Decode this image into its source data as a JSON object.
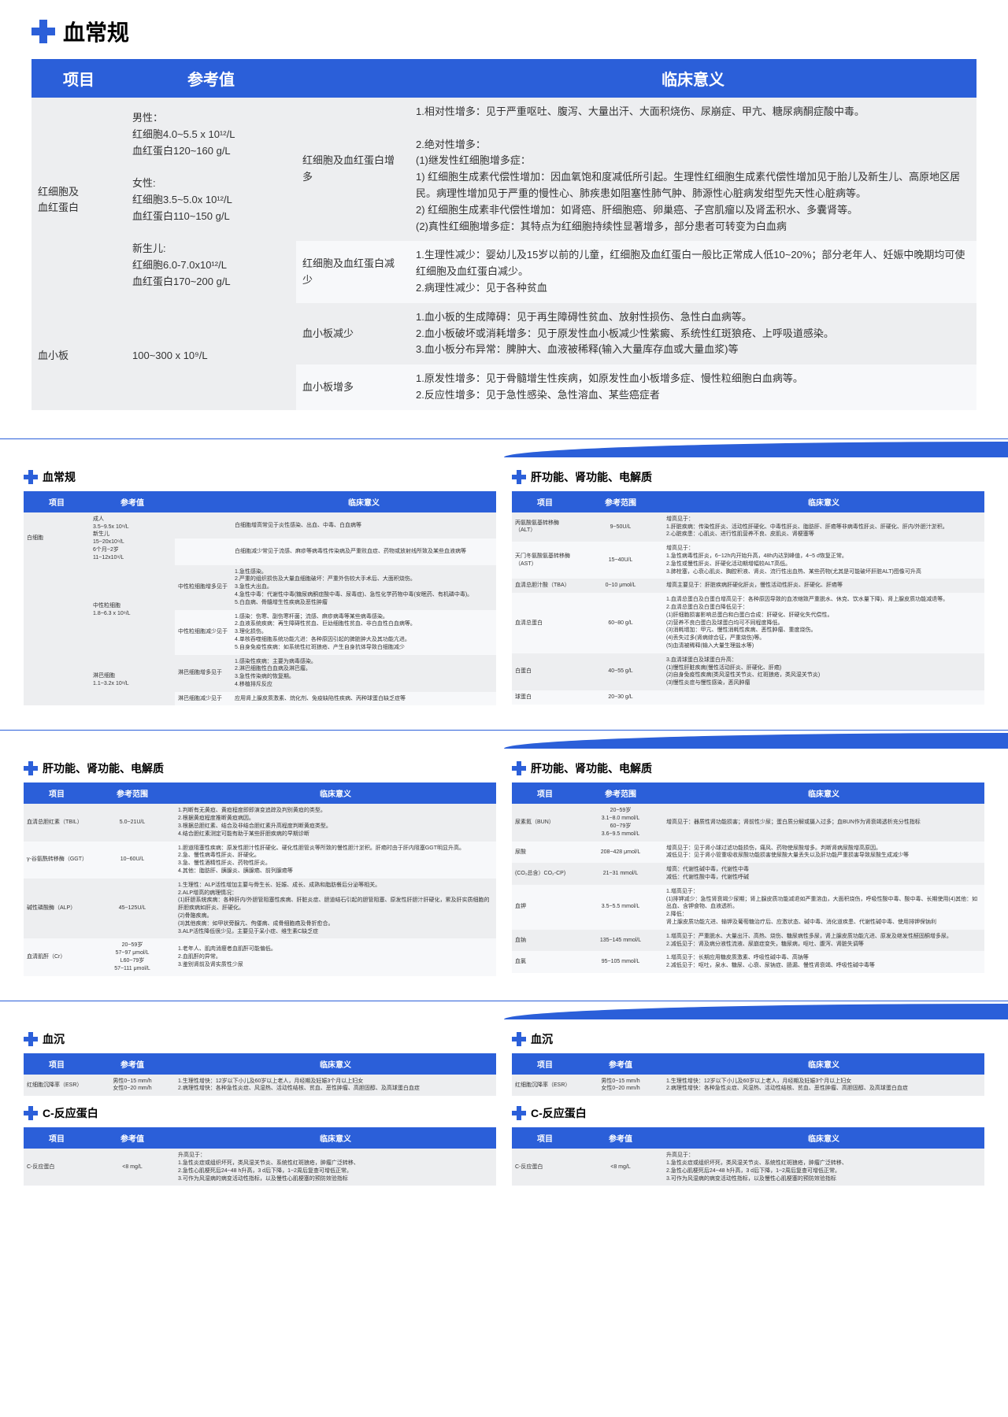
{
  "mainTitle": "血常规",
  "mainTable": {
    "headers": [
      "项目",
      "参考值",
      "",
      "临床意义"
    ],
    "rows": [
      {
        "item": "红细胞及\n血红蛋白",
        "ref": "男性：\n红细胞4.0~5.5 x 10¹²/L\n血红蛋白120~160 g/L\n\n女性:\n红细胞3.5~5.0x 10¹²/L\n血红蛋白110~150 g/L\n\n新生儿:\n红细胞6.0-7.0x10¹²/L\n血红蛋白170~200 g/L",
        "subs": [
          {
            "label": "红细胞及血红蛋白增多",
            "meaning": "1.相对性增多：见于严重呕吐、腹泻、大量出汗、大面积烧伤、尿崩症、甲亢、糖尿病酮症酸中毒。\n\n2.绝对性增多：\n(1)继发性红细胞增多症：\n1) 红细胞生成素代偿性增加：因血氧饱和度减低所引起。生理性红细胞生成素代偿性增加见于胎儿及新生儿、高原地区居民。病理性增加见于严重的慢性心、肺疾患如阻塞性肺气肿、肺源性心脏病发绀型先天性心脏病等。\n2) 红细胞生成素非代偿性增加：如肾癌、肝细胞癌、卵巢癌、子宫肌瘤以及肾盂积水、多囊肾等。\n(2)真性红细胞增多症：其特点为红细胞持续性显著增多，部分患者可转变为白血病"
          },
          {
            "label": "红细胞及血红蛋白减少",
            "meaning": "1.生理性减少：婴幼儿及15岁以前的儿童，红细胞及血红蛋白一般比正常成人低10~20%；部分老年人、妊娠中晚期均可使红细胞及血红蛋白减少。\n2.病理性减少：见于各种贫血"
          }
        ]
      },
      {
        "item": "血小板",
        "ref": "100~300 x 10⁹/L",
        "subs": [
          {
            "label": "血小板减少",
            "meaning": "1.血小板的生成障碍：见于再生障碍性贫血、放射性损伤、急性白血病等。\n2.血小板破坏或消耗增多：见于原发性血小板减少性紫癜、系统性红斑狼疮、上呼吸道感染。\n3.血小板分布异常：脾肿大、血液被稀释(输入大量库存血或大量血浆)等"
          },
          {
            "label": "血小板增多",
            "meaning": "1.原发性增多：见于骨髓增生性疾病，如原发性血小板增多症、慢性粒细胞白血病等。\n2.反应性增多：见于急性感染、急性溶血、某些癌症者"
          }
        ]
      }
    ]
  },
  "panels": {
    "bloodRoutine": {
      "title": "血常规",
      "headers": [
        "项目",
        "参考值",
        "",
        "临床意义"
      ],
      "rows": [
        {
          "item": "白细胞",
          "ref": "成人\n3.5~9.5x 10⁹/L\n新生儿\n15~20x10⁹/L\n6个月~2岁\n11~12x10⁹/L",
          "subs": [
            {
              "label": "",
              "meaning": "白细胞增高常见于炎性感染、出血、中毒、白血病等"
            },
            {
              "label": "",
              "meaning": "白细胞减少常见于流感、麻疹等病毒性传染病及严重败血症、药物或放射线所致及某些血液病等"
            }
          ]
        },
        {
          "item": "",
          "ref": "中性粒细胞\n1.8~6.3 x 10⁹/L",
          "subs": [
            {
              "label": "中性粒细胞增多见于",
              "meaning": "1.急性感染。\n2.严重的组织损伤及大量血细胞破坏：严重外伤较大手术后、大面积烧伤。\n3.急性大出血。\n4.急性中毒：代谢性中毒(糖尿病酮症酸中毒、尿毒症)、急性化学药物中毒(安眠药、有机磷中毒)。\n5.白血病、骨髓增生性疾病及恶性肿瘤"
            },
            {
              "label": "中性粒细胞减少见于",
              "meaning": "1.感染：伤寒、副伤寒杆菌；流感、麻疹病毒等某些病毒感染。\n2.血液系统疾病：再生障碍性贫血、巨幼细胞性贫血、非白血性白血病等。\n3.理化损伤。\n4.单核吞噬细胞系统功能亢进：各种原因引起的脾脏肿大及其功能亢进。\n5.自身免疫性疾病：如系统性红斑狼疮、产生自身抗体导致白细胞减少"
            }
          ]
        },
        {
          "item": "",
          "ref": "淋巴细胞\n1.1~3.2x 10⁹/L",
          "subs": [
            {
              "label": "淋巴细胞增多见于",
              "meaning": "1.感染性疾病：主要为病毒感染。\n2.淋巴细胞性白血病及淋巴瘤。\n3.急性传染病的恢复期。\n4.移植排斥反应"
            },
            {
              "label": "淋巴细胞减少见于",
              "meaning": "应用肾上腺皮质激素、烷化剂、免疫缺陷性疾病、丙种球蛋白缺乏症等"
            }
          ]
        }
      ]
    },
    "liverKidney1": {
      "title": "肝功能、肾功能、电解质",
      "headers": [
        "项目",
        "参考范围",
        "临床意义"
      ],
      "rows": [
        {
          "item": "丙氨酸氨基转移酶（ALT）",
          "ref": "9~50U/L",
          "meaning": "增高见于：\n1.肝脏疾病：传染性肝炎、活动性肝硬化、中毒性肝炎、脂肪肝、肝癌等非病毒性肝炎、肝硬化、肝内/外胆汁淤积。\n2.心脏疾患：心肌炎、进行性肌营养不良、皮肌炎、肾梗塞等"
        },
        {
          "item": "天门冬氨酸氨基转移酶（AST）",
          "ref": "15~40U/L",
          "meaning": "增高见于：\n1.急性病毒性肝炎，6~12h内开始升高，48h内达到峰值，4~5 d恢复正常。\n2.急性或慢性肝炎、肝硬化活动期增幅较ALT高低。\n3.肺栓塞，心衰心肌炎、胸腔积液、肾炎、流行性出血热、某些药物(尤其是可能破坏肝脏ALT)图像可升高"
        },
        {
          "item": "血清总胆汁酸（TBA）",
          "ref": "0~10 μmol/L",
          "meaning": "增高主要见于：肝脏疾病肝硬化肝炎，慢性活动性肝炎、肝硬化、肝癌等"
        },
        {
          "item": "血清总蛋白",
          "ref": "60~80 g/L",
          "meaning": "1.血清总蛋白及白蛋白增高见于：各种原因导致的血浓缩致严重脱水、休克、饮水量下降)、肾上腺皮质功能减退等。\n2.血清总蛋白及白蛋白降低见于：\n(1)肝细胞损害影响总蛋白和白蛋白合成：肝硬化、肝硬化失代偿性。\n(2)营养不良白蛋白及球蛋白均可不同程度降低。\n(3)消耗增加：甲亢、慢性消耗性疾病、恶性肿瘤、重度烧伤。\n(4)丢失过多(肾病综合征，严重烧伤)等。\n(5)血清被稀释(输入大量生理盐水等)"
        },
        {
          "item": "白蛋白",
          "ref": "40~55 g/L",
          "meaning": "3.血清球蛋白及球蛋白升高：\n(1)慢性肝脏疾病(慢性活动肝炎、肝硬化、肝癌)\n(2)自身免疫性疾病(类风湿性关节炎、红斑狼疮，类风湿关节炎)\n(3)慢性炎症与慢性感染，恶风肿瘤"
        },
        {
          "item": "球蛋白",
          "ref": "20~30 g/L",
          "meaning": ""
        }
      ]
    },
    "liverKidney2": {
      "title": "肝功能、肾功能、电解质",
      "headers": [
        "项目",
        "参考范围",
        "临床意义"
      ],
      "rows": [
        {
          "item": "血清总胆红素（TBIL）",
          "ref": "5.0~21U/L",
          "meaning": "1.判断有无黄疸、黄疸程度即即演变追踪及判别黄疸的类型。\n2.根据黄疸程度推断黄疸病因。\n3.根据总胆红素、结合及非结合胆红素升高程度判断黄疸类型。\n4.结合胆红素测定可能有助于某些肝胆疾病的早期诊断"
        },
        {
          "item": "γ-谷氨酰转移酶（GGT）",
          "ref": "10~60U/L",
          "meaning": "1.胆道阻塞性疾病：原发性胆汁性肝硬化、硬化性胆管炎等所致的慢性胆汁淤积。肝癌时由于肝内阻塞GGT明显升高。\n2.急、慢性病毒性肝炎、肝硬化。\n3.急、慢性酒精性肝炎、药物性肝炎。\n4.其他：脂肪肝、胰腺炎、胰腺癌、前列腺癌等"
        },
        {
          "item": "碱性磷酸酶（ALP）",
          "ref": "45~125U/L",
          "meaning": "1.生理性：ALP活性增加主要与骨生长、妊娠、成长、成熟和脂肪餐后分泌等相关。\n2.ALP增高的病理情况：\n(1)肝胆系统疾病：各种肝内/外胆管阻塞性疾病、肝脏炎症、胆道结石引起的胆管阻塞、原发性肝胆汁肝硬化，累及肝实质细胞的肝胆疾病如肝炎、肝硬化。\n(2)骨骼疾病。\n(3)其他疾病：如甲状旁腺亢、佝偻病、成骨细胞癌及骨折愈合。\n3.ALP活性降低很少见，主要见于呆小症、维生素C缺乏症"
        },
        {
          "item": "血清肌酐（Cr）",
          "ref": "20~59岁\n57~97 μmol/L\nL60~79岁\n57~111 μmol/L",
          "meaning": "1.老年人、肌肉消瘦者血肌酐可能偏低。\n2.血肌酐的异常。\n3.鉴别肾前及肾实质性少尿"
        }
      ]
    },
    "liverKidney3": {
      "title": "肝功能、肾功能、电解质",
      "headers": [
        "项目",
        "参考范围",
        "临床意义"
      ],
      "rows": [
        {
          "item": "尿素氮（BUN）",
          "ref": "20~59岁\n3.1~8.0 mmol/L\n60~79岁\n3.6~9.5 mmol/L",
          "meaning": "增高见于：器质性肾功能损害；肾前性少尿；蛋白质分解或摄入过多；血BUN作为肾衰竭透析充分性指标"
        },
        {
          "item": "尿酸",
          "ref": "208~428 μmol/L",
          "meaning": "增高见于：见于肾小球过滤功能损伤，痛风、药物使尿酸增多。判断肾病尿酸增高原因。\n减低见于：见于肾小管重吸收尿酸功能损害使尿酸大量丢失以及肝功能严重损害导致尿酸生成减少等"
        },
        {
          "item": "(CO₂总含）CO₂-CP)",
          "ref": "21~31 mmol/L",
          "meaning": "增高：代谢性碱中毒，代谢性中毒\n减低：代谢性酸中毒，代谢性呼碱"
        },
        {
          "item": "血钾",
          "ref": "3.5~5.5 mmol/L",
          "meaning": "1.增高见于：\n(1)排钾减少：急性肾衰竭少尿期；肾上腺皮质功能减退如严重溶血，大面积烧伤，呼吸性酸中毒、酸中毒、长期使用(4)其他：如出血、含钾食物、血液透析。\n2.降低：\n肾上腺皮质功能亢进、输钾及葡萄糖治疗后、应激状态、碱中毒、消化道疾患、代谢性碱中毒、使用排钾保钠利"
        },
        {
          "item": "血钠",
          "ref": "135~145 mmol/L",
          "meaning": "1.增高见于：严重脱水、大量出汗、高热、烧伤、糖尿病性多尿，肾上腺皮质功能亢进、原发及继发性醛固酮增多尿。\n2.减低见于：肾及病分液性流液、尿崩症变失，糖尿病，呕吐、腹泻、肾脏失调等"
        },
        {
          "item": "血氯",
          "ref": "95~105 mmol/L",
          "meaning": "1.增高见于：长期应用糖皮质激素、呼吸性碱中毒、高钠等\n2.减低见于：呕吐，泉水、糖尿、心衰、尿钠症、肠漏、慢性肾衰竭、呼吸性碱中毒等"
        }
      ]
    },
    "esr": {
      "title": "血沉",
      "headers": [
        "项目",
        "参考值",
        "临床意义"
      ],
      "rows": [
        {
          "item": "红细胞沉降率（ESR）",
          "ref": "男性0~15 mm/h\n女性0~20 mm/h",
          "meaning": "1.生理性增快：12岁以下小儿及60岁以上老人，月经期及妊娠3个月以上妇女\n2.病理性增快：各种急性炎症、风湿热、活动性结核、贫血、恶性肿瘤、高胆固醇、及高球蛋白血症"
        }
      ]
    },
    "crp": {
      "title": "C-反应蛋白",
      "headers": [
        "项目",
        "参考值",
        "临床意义"
      ],
      "rows": [
        {
          "item": "C-反应蛋白",
          "ref": "<8 mg/L",
          "meaning": "升高见于：\n1.急性炎症或组织坏死，类风湿关节炎、系统性红斑狼疮，肿瘤广泛转移、\n2.急性心肌梗死后24~48 h升高，3 d后下降，1~2周后复查可增低正常。\n3.可作为风湿病的病变活动性指标，以及慢性心肌梗塞的预防效验指标"
        }
      ]
    }
  }
}
